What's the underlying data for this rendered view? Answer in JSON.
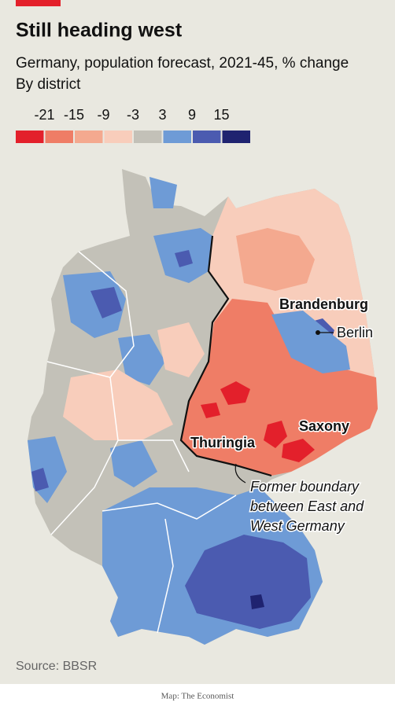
{
  "title": "Still heading west",
  "subtitle": "Germany, population forecast, 2021-45, % change",
  "unit_note": "By district",
  "legend": {
    "ticks": [
      -21,
      -15,
      -9,
      -3,
      3,
      9,
      15
    ],
    "colors": [
      "#e3202b",
      "#ef7d66",
      "#f4a98f",
      "#f8cdbb",
      "#c3c1b8",
      "#6e9bd6",
      "#4b5bb0",
      "#1f2370"
    ]
  },
  "labels": {
    "brandenburg": "Brandenburg",
    "berlin": "Berlin",
    "saxony": "Saxony",
    "thuringia": "Thuringia"
  },
  "annotation": [
    "Former boundary",
    "between East and",
    "West Germany"
  ],
  "source": "Source: BBSR",
  "credit": "Map: The Economist"
}
